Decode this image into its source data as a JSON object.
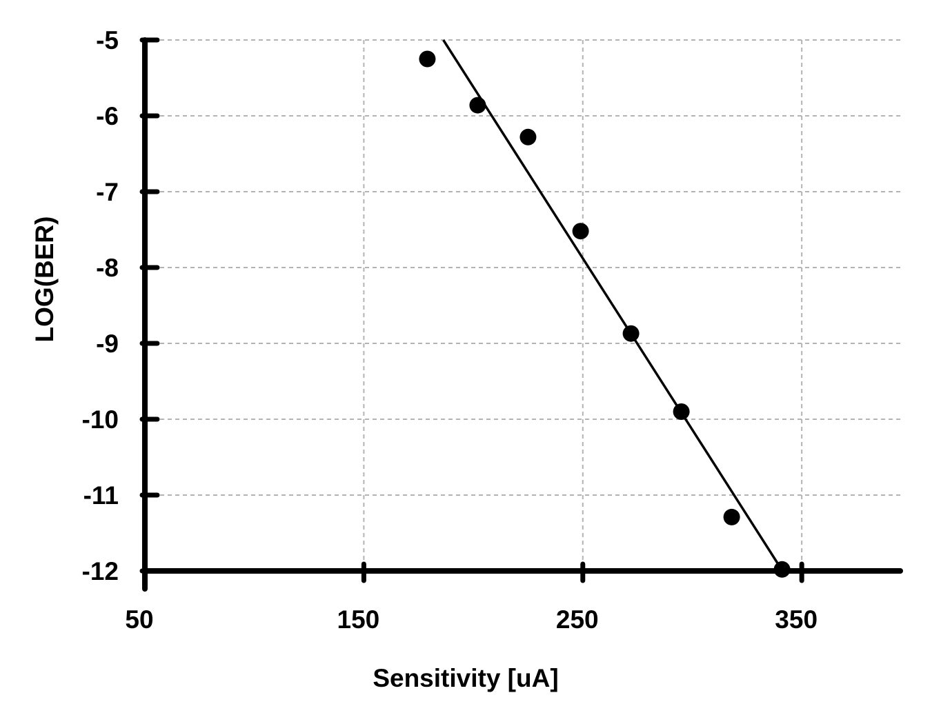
{
  "chart_data": {
    "type": "scatter",
    "xlabel": "Sensitivity [uA]",
    "ylabel": "LOG(BER)",
    "xlim": [
      50,
      395
    ],
    "ylim": [
      -12,
      -5
    ],
    "xticks": [
      50,
      150,
      250,
      350
    ],
    "yticks": [
      -5,
      -6,
      -7,
      -8,
      -9,
      -10,
      -11,
      -12
    ],
    "grid": true,
    "series": [
      {
        "points": [
          {
            "x": 179,
            "y": -5.25
          },
          {
            "x": 202,
            "y": -5.86
          },
          {
            "x": 225,
            "y": -6.28
          },
          {
            "x": 249,
            "y": -7.52
          },
          {
            "x": 272,
            "y": -8.87
          },
          {
            "x": 295,
            "y": -9.9
          },
          {
            "x": 318,
            "y": -11.29
          },
          {
            "x": 341,
            "y": -11.98
          }
        ]
      }
    ],
    "fit_line": {
      "x": [
        186.3,
        341.2
      ],
      "y": [
        -5.0,
        -12.0
      ]
    }
  }
}
